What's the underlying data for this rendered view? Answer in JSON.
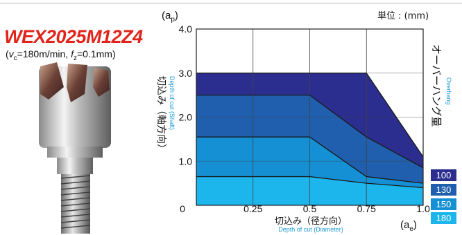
{
  "model": "WEX2025M12Z4",
  "conditions": {
    "open": "(",
    "vc_sym": "v",
    "vc_sub": "c",
    "vc_val": "=180m/min, ",
    "fz_sym": "f",
    "fz_sub": "z",
    "fz_val": "=0.1mm",
    "close": ")"
  },
  "unit_label": "単位 : (mm)",
  "overhang_label_jp": "オーバーハング量",
  "overhang_label_en": "Overhang",
  "colors": {
    "area_100": "#2b2e8e",
    "area_130": "#1f5fae",
    "area_150": "#1590d4",
    "area_180": "#1cb6ec",
    "legend_text": "#ffffff",
    "model_red": "#e0241b",
    "sub_label_blue": "#1b9ad6"
  },
  "chart_data": {
    "type": "area",
    "title": "",
    "xlabel": "切込み（径方向）",
    "xlabel_en": "Depth of cut (Diameter)",
    "x_axis_symbol": "(a",
    "x_axis_symbol_sub": "e",
    "x_axis_symbol_close": ")",
    "ylabel": "切込み（軸方向）",
    "ylabel_en": "Depth of cut (Shaft)",
    "y_axis_symbol": "(a",
    "y_axis_symbol_sub": "p",
    "y_axis_symbol_close": ")",
    "xlim": [
      0,
      1.0
    ],
    "ylim": [
      0,
      4.0
    ],
    "grid": true,
    "x_tick_labels": [
      "0",
      "0.25",
      "0.5",
      "0.75",
      "1.0"
    ],
    "y_tick_labels": [
      "1.0",
      "2.0",
      "3.0",
      "4.0"
    ],
    "x": [
      0,
      0.25,
      0.5,
      0.75,
      1.0
    ],
    "series": [
      {
        "name": "100",
        "values": [
          3.0,
          3.0,
          3.0,
          3.0,
          1.1
        ]
      },
      {
        "name": "130",
        "values": [
          2.5,
          2.5,
          2.5,
          1.55,
          0.85
        ]
      },
      {
        "name": "150",
        "values": [
          1.55,
          1.55,
          1.55,
          0.65,
          0.5
        ]
      },
      {
        "name": "180",
        "values": [
          0.65,
          0.65,
          0.65,
          0.5,
          0.4
        ]
      }
    ],
    "legend_placement": "right"
  }
}
